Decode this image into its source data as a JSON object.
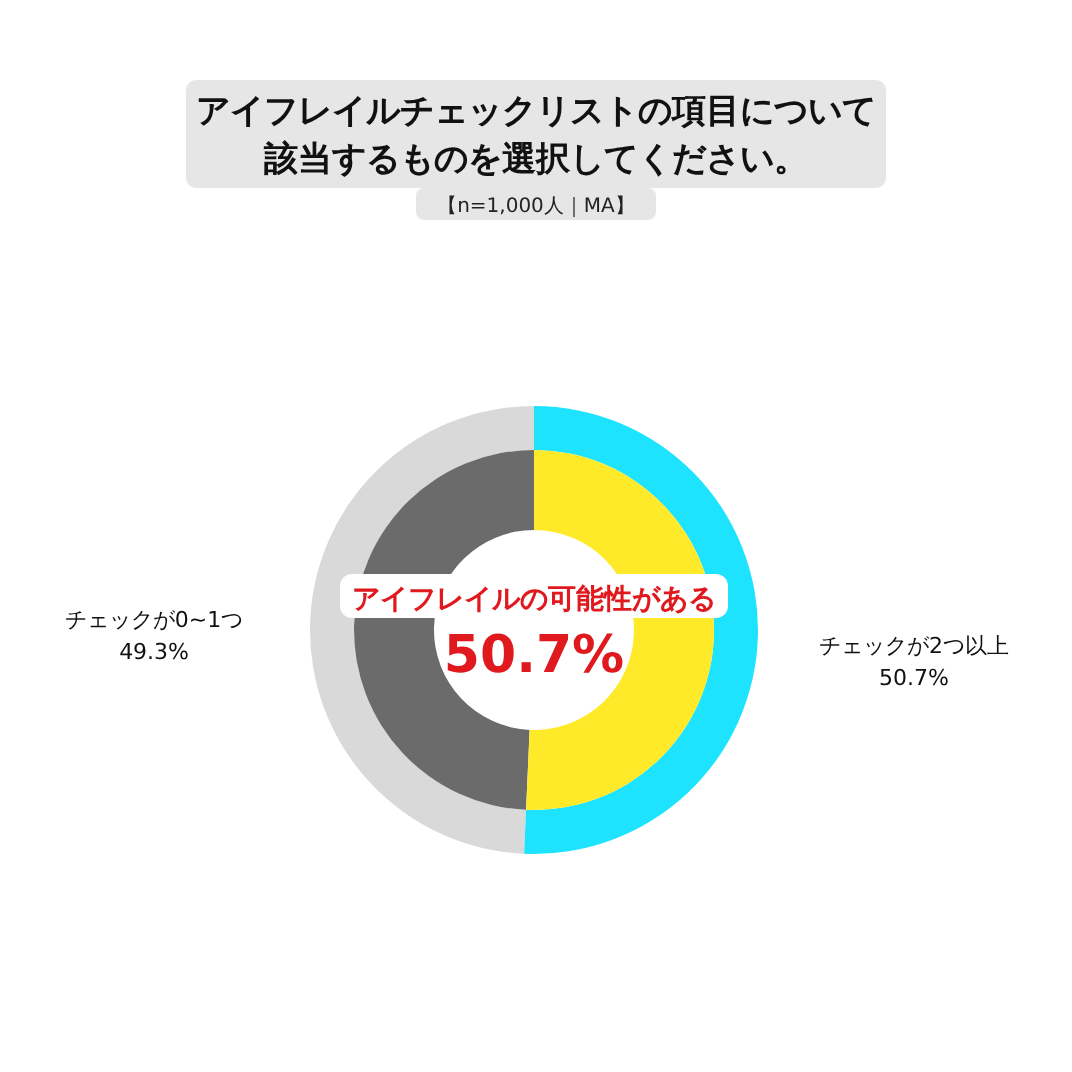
{
  "chart_data": {
    "type": "donut",
    "title": "アイフレイルチェックリストの項目について該当するものを選択してください。",
    "subtitle": "【n=1,000人｜MA】",
    "categories": [
      "チェックが0~1つ",
      "チェックが2つ以上"
    ],
    "series": [
      {
        "values": [
          49.3,
          50.7
        ],
        "colors": [
          "#d9d9d9",
          "#1ee3ff"
        ],
        "value_labels": [
          "49.3%",
          "50.7%"
        ]
      },
      {
        "values": [
          49.3,
          50.7
        ],
        "colors": [
          "#6b6b6b",
          "#ffea2a"
        ]
      }
    ],
    "annotations": [
      "アイフレイルの可能性がある",
      "50.7%"
    ]
  }
}
